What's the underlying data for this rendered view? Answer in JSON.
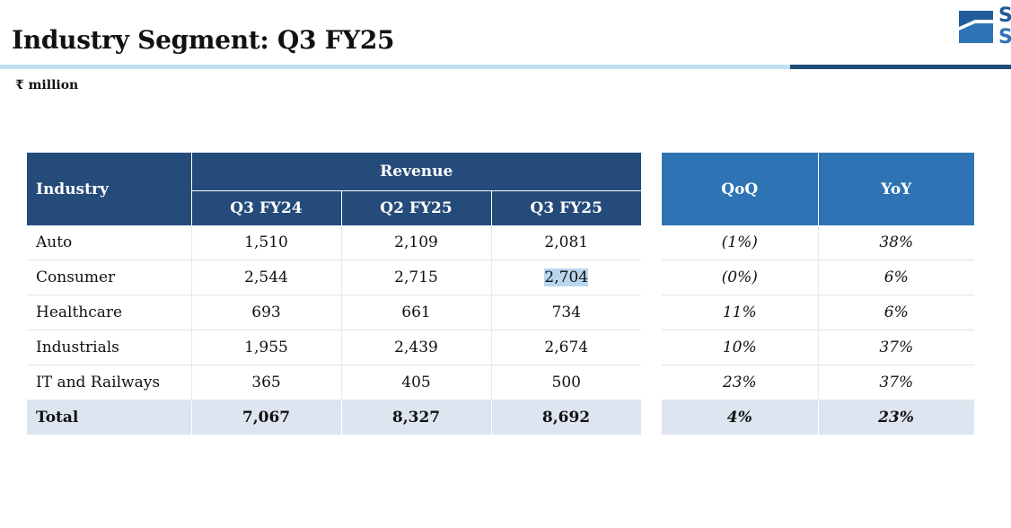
{
  "title": "Industry Segment: Q3 FY25",
  "unit": "₹ million",
  "colors": {
    "header_dark": "#244b7a",
    "header_blue": "#2e74b5",
    "total_bg": "#dde5f0",
    "rule_light": "#bfe0f3",
    "rule_dark": "#1f4e79"
  },
  "logo": {
    "icon": "company-logo-s-icon"
  },
  "table": {
    "industry_header": "Industry",
    "revenue_header": "Revenue",
    "periods": [
      "Q3 FY24",
      "Q2 FY25",
      "Q3 FY25"
    ],
    "qoq_header": "QoQ",
    "yoy_header": "YoY",
    "rows": [
      {
        "industry": "Auto",
        "q3fy24": "1,510",
        "q2fy25": "2,109",
        "q3fy25": "2,081",
        "qoq": "(1%)",
        "yoy": "38%"
      },
      {
        "industry": "Consumer",
        "q3fy24": "2,544",
        "q2fy25": "2,715",
        "q3fy25": "2,704",
        "qoq": "(0%)",
        "yoy": "6%"
      },
      {
        "industry": "Healthcare",
        "q3fy24": "693",
        "q2fy25": "661",
        "q3fy25": "734",
        "qoq": "11%",
        "yoy": "6%"
      },
      {
        "industry": "Industrials",
        "q3fy24": "1,955",
        "q2fy25": "2,439",
        "q3fy25": "2,674",
        "qoq": "10%",
        "yoy": "37%"
      },
      {
        "industry": "IT and Railways",
        "q3fy24": "365",
        "q2fy25": "405",
        "q3fy25": "500",
        "qoq": "23%",
        "yoy": "37%"
      }
    ],
    "total": {
      "industry": "Total",
      "q3fy24": "7,067",
      "q2fy25": "8,327",
      "q3fy25": "8,692",
      "qoq": "4%",
      "yoy": "23%"
    }
  }
}
